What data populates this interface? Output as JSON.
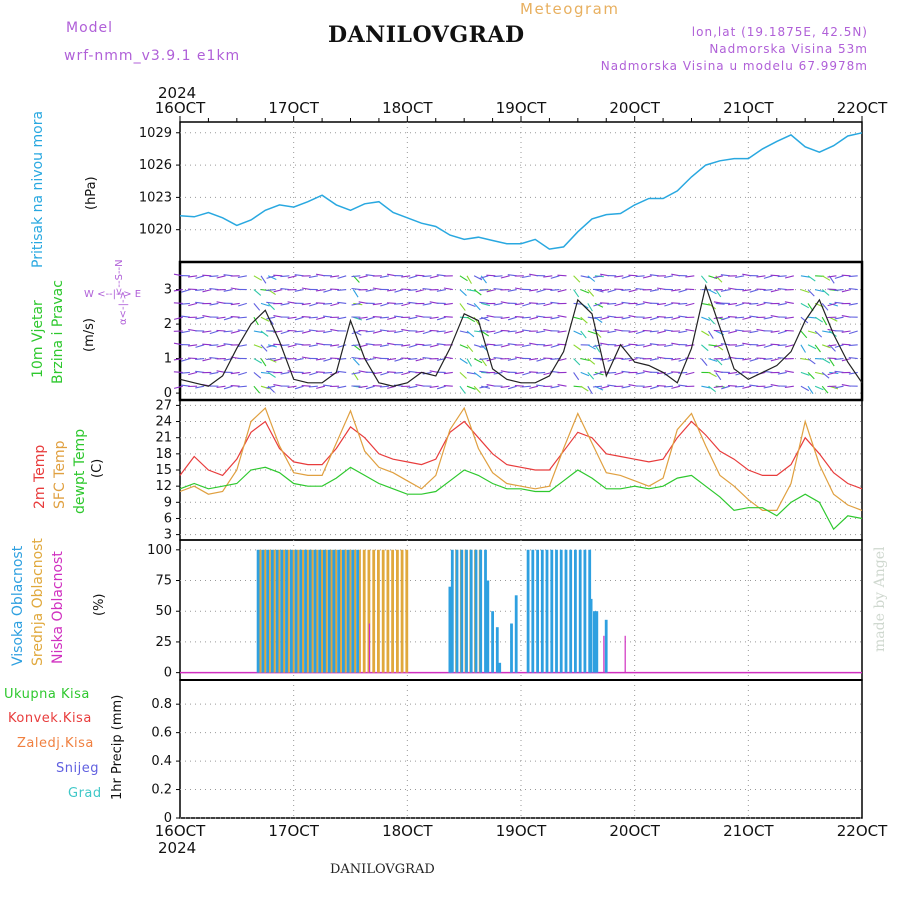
{
  "header": {
    "model_label": "Model",
    "model_name": "wrf-nmm_v3.9.1  e1km",
    "title": "DANILOVGRAD",
    "meteogram_label": "Meteogram",
    "coords": "lon,lat (19.1875E, 42.5N)",
    "elevation": "Nadmorska Visina 53m",
    "model_elevation": "Nadmorska Visina u modelu 67.9978m"
  },
  "footer": {
    "location": "DANILOVGRAD",
    "watermark": "made by Angel"
  },
  "time_axis": {
    "year": "2024",
    "ticks": [
      "16OCT",
      "17OCT",
      "18OCT",
      "19OCT",
      "20OCT",
      "21OCT",
      "22OCT"
    ]
  },
  "panels": {
    "pressure": {
      "title": "Pritisak na nivou mora",
      "unit": "(hPa)"
    },
    "wind": {
      "title_line1": "10m Vjetar",
      "title_line2": "Brzina i Pravac",
      "unit": "(m/s)",
      "compass_ns": "<--S--N",
      "compass_we": "W <--|--> E",
      "compass_alpha": "α<-|->"
    },
    "temp": {
      "label_2m": "2m Temp",
      "label_sfc": "SFC Temp",
      "label_dew": "dewpt Temp",
      "unit": "(C)"
    },
    "cloud": {
      "label_high": "Visoka Oblacnost",
      "label_mid": "Srednja Oblacnost",
      "label_low": "Niska Oblacnost",
      "unit": "(%)"
    },
    "precip": {
      "ylabel": "1hr Precip (mm)",
      "legend": [
        "Ukupna Kisa",
        "Konvek.Kisa",
        "Zaledj.Kisa",
        "Snijeg",
        "Grad"
      ]
    }
  },
  "colors": {
    "pressure": "#29a8e0",
    "temp2m": "#e83c3c",
    "sfc": "#e0a040",
    "dew": "#2ec82e",
    "cloud_high": "#2ea0e0",
    "cloud_mid": "#e0a83c",
    "cloud_low": "#d030c0",
    "rain": "#2ec82e",
    "conv": "#e83c3c",
    "frz": "#f08040",
    "snow": "#6060e0",
    "hail": "#40c8c8"
  },
  "chart_data": [
    {
      "type": "line",
      "name": "pressure",
      "x_unit": "hours from 16OCT 00",
      "xlim": [
        0,
        144
      ],
      "yticks": [
        1020,
        1023,
        1026,
        1029
      ],
      "ylim": [
        1017.0,
        1030.0
      ],
      "x": [
        0,
        3,
        6,
        9,
        12,
        15,
        18,
        21,
        24,
        27,
        30,
        33,
        36,
        39,
        42,
        45,
        48,
        51,
        54,
        57,
        60,
        63,
        66,
        69,
        72,
        75,
        78,
        81,
        84,
        87,
        90,
        93,
        96,
        99,
        102,
        105,
        108,
        111,
        114,
        117,
        120,
        123,
        126,
        129,
        132,
        135,
        138,
        141,
        144
      ],
      "values": [
        1021.3,
        1021.2,
        1021.6,
        1021.1,
        1020.4,
        1020.9,
        1021.8,
        1022.3,
        1022.1,
        1022.6,
        1023.2,
        1022.3,
        1021.8,
        1022.4,
        1022.6,
        1021.6,
        1021.1,
        1020.6,
        1020.3,
        1019.5,
        1019.1,
        1019.3,
        1019.0,
        1018.7,
        1018.7,
        1019.1,
        1018.2,
        1018.4,
        1019.8,
        1021.0,
        1021.4,
        1021.5,
        1022.3,
        1022.9,
        1022.9,
        1023.6,
        1024.9,
        1026.0,
        1026.4,
        1026.6,
        1026.6,
        1027.5,
        1028.2,
        1028.8,
        1027.7,
        1027.2,
        1027.8,
        1028.7,
        1029.0
      ]
    },
    {
      "type": "line",
      "name": "wind speed 10m",
      "xlim": [
        0,
        144
      ],
      "yticks": [
        0,
        1,
        2,
        3
      ],
      "ylim": [
        -0.2,
        3.8
      ],
      "x": [
        0,
        3,
        6,
        9,
        12,
        15,
        18,
        21,
        24,
        27,
        30,
        33,
        36,
        39,
        42,
        45,
        48,
        51,
        54,
        57,
        60,
        63,
        66,
        69,
        72,
        75,
        78,
        81,
        84,
        87,
        90,
        93,
        96,
        99,
        102,
        105,
        108,
        111,
        114,
        117,
        120,
        123,
        126,
        129,
        132,
        135,
        138,
        141,
        144
      ],
      "values": [
        0.4,
        0.3,
        0.2,
        0.5,
        1.3,
        2.0,
        2.4,
        1.5,
        0.4,
        0.3,
        0.3,
        0.6,
        2.1,
        1.0,
        0.3,
        0.2,
        0.3,
        0.6,
        0.5,
        1.3,
        2.3,
        2.1,
        0.7,
        0.4,
        0.3,
        0.3,
        0.5,
        1.2,
        2.7,
        2.3,
        0.5,
        1.4,
        0.9,
        0.8,
        0.6,
        0.3,
        1.3,
        3.1,
        1.9,
        0.7,
        0.4,
        0.6,
        0.8,
        1.2,
        2.1,
        2.7,
        1.7,
        0.9,
        0.3
      ]
    },
    {
      "type": "line",
      "name": "temperature",
      "xlim": [
        0,
        144
      ],
      "yticks": [
        3,
        6,
        9,
        12,
        15,
        18,
        21,
        24,
        27
      ],
      "ylim": [
        2,
        28
      ],
      "series": [
        {
          "name": "2m Temp",
          "values": [
            14.0,
            17.5,
            15.0,
            14.0,
            17.0,
            22.0,
            24.0,
            19.0,
            16.5,
            16.0,
            16.0,
            19.0,
            23.0,
            21.0,
            18.0,
            17.0,
            16.5,
            16.0,
            17.0,
            22.0,
            24.0,
            21.0,
            18.0,
            16.0,
            15.5,
            15.0,
            15.0,
            18.5,
            22.0,
            21.0,
            18.0,
            17.5,
            17.0,
            16.5,
            17.0,
            21.0,
            24.0,
            21.5,
            18.5,
            17.0,
            15.0,
            14.0,
            14.0,
            16.0,
            21.0,
            18.0,
            14.5,
            12.5,
            11.5
          ]
        },
        {
          "name": "SFC Temp",
          "values": [
            11.0,
            12.0,
            10.5,
            11.0,
            15.0,
            24.0,
            26.5,
            19.5,
            14.5,
            14.0,
            14.0,
            20.0,
            26.0,
            18.5,
            15.5,
            14.5,
            13.0,
            11.5,
            14.0,
            22.5,
            26.5,
            19.0,
            14.5,
            12.5,
            12.0,
            11.5,
            12.0,
            19.0,
            25.5,
            20.0,
            14.5,
            14.0,
            13.0,
            12.0,
            13.5,
            22.5,
            25.5,
            19.5,
            14.0,
            12.0,
            9.5,
            7.5,
            7.5,
            12.5,
            24.0,
            16.0,
            10.5,
            8.5,
            7.5
          ]
        },
        {
          "name": "dewpt Temp",
          "values": [
            11.5,
            12.5,
            11.5,
            12.0,
            12.5,
            15.0,
            15.5,
            14.5,
            12.5,
            12.0,
            12.0,
            13.5,
            15.5,
            14.0,
            12.5,
            11.5,
            10.5,
            10.5,
            11.0,
            13.0,
            15.0,
            14.0,
            12.5,
            11.5,
            11.5,
            11.0,
            11.0,
            13.0,
            15.0,
            13.5,
            11.5,
            11.5,
            12.0,
            11.5,
            12.0,
            13.5,
            14.0,
            12.0,
            10.0,
            7.5,
            8.0,
            8.0,
            6.5,
            9.0,
            10.5,
            9.0,
            4.0,
            6.5,
            6.0
          ]
        }
      ]
    },
    {
      "type": "bar",
      "name": "cloud cover",
      "xlim": [
        0,
        144
      ],
      "yticks": [
        0,
        25,
        50,
        75,
        100
      ],
      "ylim": [
        -6,
        108
      ],
      "high_segments": [
        [
          16.5,
          37.5,
          100
        ],
        [
          57.5,
          64.5,
          100
        ],
        [
          73.5,
          86.5,
          100
        ]
      ],
      "mid_segments": [
        [
          16.5,
          48.0,
          100
        ],
        [
          58.0,
          63.0,
          100
        ]
      ],
      "scattered_high": [
        [
          65.0,
          75
        ],
        [
          66.0,
          50
        ],
        [
          67.0,
          37
        ],
        [
          67.5,
          8
        ],
        [
          70.0,
          40
        ],
        [
          71.0,
          63
        ],
        [
          86.8,
          60
        ],
        [
          87.5,
          50
        ],
        [
          88.0,
          50
        ],
        [
          90.0,
          43
        ],
        [
          57.0,
          70
        ]
      ],
      "scattered_low": [
        [
          40.0,
          40
        ],
        [
          89.5,
          30
        ],
        [
          94.0,
          30
        ]
      ]
    },
    {
      "type": "bar",
      "name": "1hr precipitation",
      "xlim": [
        0,
        144
      ],
      "yticks": [
        0,
        0.2,
        0.4,
        0.6,
        0.8
      ],
      "ylim": [
        0,
        0.97
      ],
      "values": []
    }
  ]
}
